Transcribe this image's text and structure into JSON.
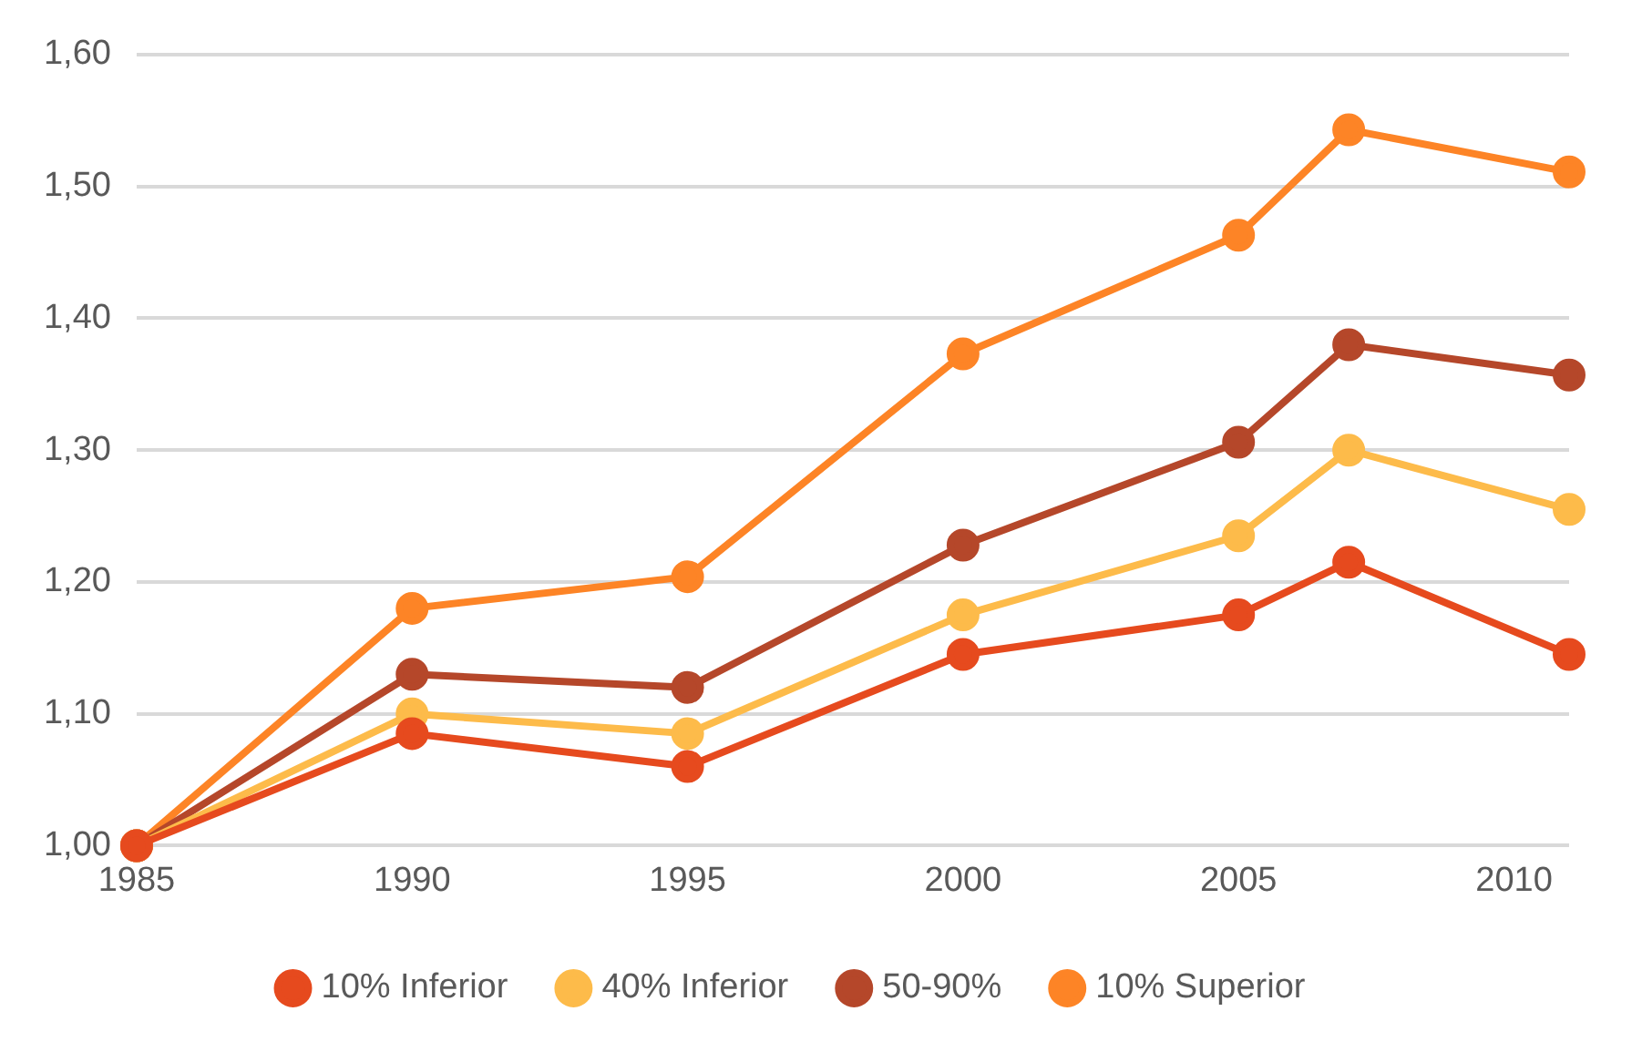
{
  "chart_data": {
    "type": "line",
    "x": [
      1985,
      1990,
      1995,
      2000,
      2005,
      2007,
      2011
    ],
    "xlim": [
      1985,
      2011
    ],
    "xticks": [
      1985,
      1990,
      1995,
      2000,
      2005,
      2010
    ],
    "ylim": [
      1,
      1.6
    ],
    "yticks": [
      {
        "value": 1,
        "label": "1,00"
      },
      {
        "value": 1.1,
        "label": "1,10"
      },
      {
        "value": 1.2,
        "label": "1,20"
      },
      {
        "value": 1.3,
        "label": "1,30"
      },
      {
        "value": 1.4,
        "label": "1,40"
      },
      {
        "value": 1.5,
        "label": "1,50"
      },
      {
        "value": 1.6,
        "label": "1,60"
      }
    ],
    "series": [
      {
        "name": "10% Inferior",
        "color": "#e64a1e",
        "values": [
          1,
          1.085,
          1.06,
          1.145,
          1.175,
          1.215,
          1.145
        ]
      },
      {
        "name": "40% Inferior",
        "color": "#fdbb4a",
        "values": [
          1,
          1.1,
          1.085,
          1.175,
          1.235,
          1.3,
          1.255
        ]
      },
      {
        "name": "50-90%",
        "color": "#b5472a",
        "values": [
          1,
          1.13,
          1.12,
          1.228,
          1.306,
          1.38,
          1.357
        ]
      },
      {
        "name": "10% Superior",
        "color": "#fd8426",
        "values": [
          1,
          1.18,
          1.204,
          1.373,
          1.463,
          1.543,
          1.511
        ]
      }
    ],
    "grid": "y",
    "legend": "bottom",
    "marker": "circle",
    "line_style": "solid"
  }
}
